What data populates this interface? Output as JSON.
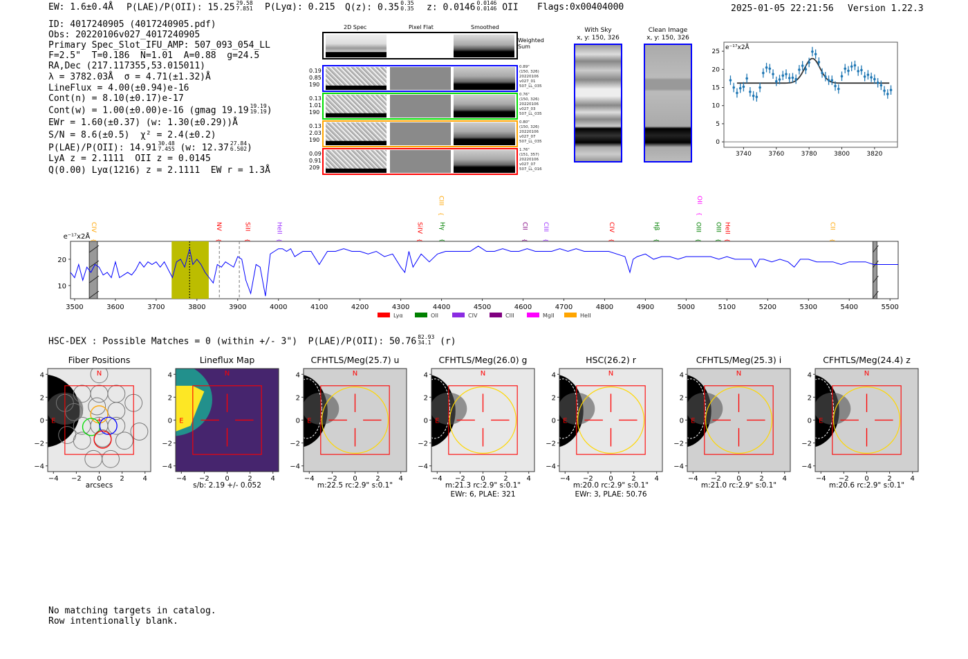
{
  "header": {
    "ew": "EW: 1.6±0.4Å",
    "plae_label": "P(LAE)/P(OII): 15.25",
    "plae_hi": "29.58",
    "plae_lo": "7.851",
    "plya": "P(Lyα): 0.215",
    "qz_label": "Q(z): 0.35",
    "qz_hi": "0.35",
    "qz_lo": "0.35",
    "z_label": "z: 0.0146",
    "z_hi": "0.0146",
    "z_lo": "0.0146",
    "z_line": "OII",
    "flags": "Flags:0x00404000",
    "timestamp": "2025-01-05 22:21:56",
    "version": "Version 1.22.3"
  },
  "info": {
    "id": "ID: 4017240905 (4017240905.pdf)",
    "obs": "Obs: 20220106v027_4017240905",
    "primary": "Primary Spec_Slot_IFU_AMP: 507_093_054_LL",
    "params": "F=2.5\"  T=0.186  N=1.01  A=0.88  g=24.5",
    "radec": "RA,Dec (217.117355,53.015011)",
    "lambda": "λ = 3782.03Å  σ = 4.71(±1.32)Å",
    "lineflux": "LineFlux = 4.00(±0.94)e-16",
    "contn": "Cont(n) = 8.10(±0.17)e-17",
    "contw": "Cont(w) = 1.00(±0.00)e-16 (gmag 19.19",
    "contw_hi": "19.19",
    "contw_lo": "19.19",
    "contw_end": ")",
    "ewr": "EWr = 1.60(±0.37) (w: 1.30(±0.29))Å",
    "sn": "S/N = 8.6(±0.5)  χ² = 2.4(±0.2)",
    "plae": "P(LAE)/P(OII): 14.91",
    "plae_hi": "30.48",
    "plae_lo": "7.455",
    "plae_w": "(w: 12.37",
    "plae_w_hi": "27.84",
    "plae_w_lo": "6.502",
    "plae_w_end": ")",
    "lya_z": "LyA z = 2.1111  OII z = 0.0145",
    "q": "Q(0.00) Lyα(1216) z = 2.1111  EW r = 1.3Å"
  },
  "spec2d": {
    "col_titles": [
      "2D Spec",
      "Pixel Flat",
      "Smoothed"
    ],
    "weighted_label": "Weighted\nSum",
    "rows": [
      {
        "color": "#0000ff",
        "left": "0.19\n0.85\n190",
        "right": "0.89\"\n(150, 326)\n20220106\nv027_01\n507_LL_035"
      },
      {
        "color": "#00dd00",
        "left": "0.13\n1.01\n190",
        "right": "0.76\"\n(150, 326)\n20220106\nv027_03\n507_LL_035"
      },
      {
        "color": "#ffa500",
        "left": "0.13\n2.03\n190",
        "right": "0.80\"\n(150, 326)\n20220106\nv027_07\n507_LL_035"
      },
      {
        "color": "#ff0000",
        "left": "0.09\n0.91\n209",
        "right": "1.76\"\n(151, 357)\n20220106\nv027_07\n507_LL_016"
      }
    ]
  },
  "cutouts": {
    "with_sky": "With Sky\nx, y: 150, 326",
    "clean": "Clean Image\nx, y: 150, 326"
  },
  "chart_data": [
    {
      "type": "scatter",
      "title": "",
      "ylabel": "e⁻¹⁷x2Å",
      "xlim": [
        3728,
        3834
      ],
      "ylim": [
        -1.5,
        27.5
      ],
      "xticks": [
        3740,
        3760,
        3780,
        3800,
        3820
      ],
      "yticks": [
        0,
        5,
        10,
        15,
        20,
        25
      ],
      "x": [
        3732,
        3734,
        3736,
        3738,
        3740,
        3742,
        3744,
        3746,
        3748,
        3750,
        3752,
        3754,
        3756,
        3758,
        3760,
        3762,
        3764,
        3766,
        3768,
        3770,
        3772,
        3774,
        3776,
        3778,
        3780,
        3782,
        3784,
        3786,
        3788,
        3790,
        3792,
        3794,
        3796,
        3798,
        3800,
        3802,
        3804,
        3806,
        3808,
        3810,
        3812,
        3814,
        3816,
        3818,
        3820,
        3822,
        3824,
        3826,
        3828,
        3830
      ],
      "y": [
        17,
        15,
        13.5,
        14.8,
        15.2,
        17.5,
        13.8,
        12.7,
        12.4,
        15,
        19,
        20.5,
        20.2,
        18.7,
        16.7,
        17.2,
        18.3,
        18.7,
        17.6,
        17.7,
        17.3,
        19.9,
        21,
        20,
        21.9,
        24.9,
        24.2,
        22,
        19,
        18,
        17,
        17,
        15.4,
        14.6,
        18.1,
        20.2,
        19.6,
        20.8,
        21.1,
        19.5,
        19.8,
        18,
        18.5,
        17.8,
        17.3,
        16.3,
        15.6,
        14.1,
        13.2,
        14.3
      ],
      "yerr": 1.3,
      "fit": {
        "continuum": 16.2,
        "center": 3782.03,
        "peak": 23.0,
        "sigma": 4.71,
        "range": [
          3736,
          3829
        ]
      },
      "color": "#1f77b4"
    },
    {
      "type": "line",
      "ylabel": "e⁻¹⁷x2Å",
      "xlim": [
        3490,
        5520
      ],
      "ylim": [
        5,
        26.8
      ],
      "xticks": [
        3500,
        3600,
        3700,
        3800,
        3900,
        4000,
        4100,
        4200,
        4300,
        4400,
        4500,
        4600,
        4700,
        4800,
        4900,
        5000,
        5100,
        5200,
        5300,
        5400,
        5500
      ],
      "yticks": [
        10,
        20
      ],
      "color": "#0000ff",
      "x": [
        3490,
        3500,
        3510,
        3520,
        3530,
        3540,
        3550,
        3560,
        3570,
        3580,
        3590,
        3600,
        3610,
        3620,
        3630,
        3640,
        3650,
        3660,
        3670,
        3680,
        3690,
        3700,
        3710,
        3720,
        3730,
        3740,
        3750,
        3760,
        3770,
        3782,
        3790,
        3800,
        3810,
        3820,
        3830,
        3840,
        3850,
        3860,
        3870,
        3880,
        3890,
        3900,
        3910,
        3920,
        3932,
        3945,
        3955,
        3968,
        3980,
        3990,
        4000,
        4010,
        4020,
        4030,
        4040,
        4060,
        4080,
        4100,
        4120,
        4140,
        4160,
        4180,
        4200,
        4220,
        4240,
        4260,
        4280,
        4300,
        4310,
        4320,
        4330,
        4350,
        4370,
        4390,
        4410,
        4430,
        4450,
        4470,
        4490,
        4510,
        4530,
        4550,
        4570,
        4590,
        4610,
        4630,
        4650,
        4670,
        4690,
        4710,
        4730,
        4750,
        4770,
        4790,
        4810,
        4830,
        4850,
        4862,
        4870,
        4880,
        4900,
        4920,
        4940,
        4960,
        4980,
        5000,
        5020,
        5040,
        5060,
        5080,
        5100,
        5120,
        5140,
        5160,
        5170,
        5180,
        5190,
        5210,
        5230,
        5250,
        5265,
        5280,
        5300,
        5320,
        5340,
        5360,
        5380,
        5400,
        5420,
        5440,
        5460,
        5480,
        5500,
        5520
      ],
      "y": [
        15,
        13,
        18,
        12,
        17,
        15,
        18,
        17,
        14,
        15,
        13,
        19,
        13,
        14,
        15,
        14,
        16,
        19,
        17,
        19,
        18,
        19,
        17,
        19,
        16,
        13,
        19,
        20,
        17,
        24,
        18,
        20,
        18,
        15,
        13,
        11,
        18,
        17,
        19,
        18,
        17,
        21,
        20,
        12,
        7,
        18,
        17,
        6,
        22,
        23,
        24,
        24,
        23,
        24,
        21,
        23,
        23,
        18,
        23,
        23,
        24,
        23,
        23,
        22,
        23,
        21,
        22,
        17,
        15,
        23,
        17,
        22,
        19,
        22,
        23,
        23,
        23,
        23,
        25,
        23,
        23,
        24,
        23,
        23,
        24,
        23,
        23,
        23,
        24,
        23,
        24,
        23,
        23,
        23,
        23,
        22,
        21,
        15,
        20,
        21,
        22,
        20,
        21,
        21,
        20,
        21,
        21,
        21,
        21,
        20,
        21,
        20,
        20,
        20,
        17,
        20,
        20,
        19,
        20,
        19,
        17,
        20,
        20,
        19,
        19,
        19,
        18,
        19,
        19,
        19,
        18,
        18,
        18,
        18
      ],
      "masked_regions": [
        [
          3536,
          3556
        ],
        [
          5458,
          5468
        ]
      ],
      "highlight_region": [
        3738,
        3829
      ],
      "line_center": 3782,
      "dashed_lines": [
        3855,
        3904
      ],
      "annotations": [
        {
          "label": "CIV",
          "wave": 3548,
          "color": "#ffa500",
          "high": false
        },
        {
          "label": "NV",
          "wave": 3855,
          "color": "#ff0000",
          "high": false
        },
        {
          "label": "SiII",
          "wave": 3925,
          "color": "#ff0000",
          "high": false
        },
        {
          "label": "HeII",
          "wave": 4003,
          "color": "#9b30ff",
          "high": false
        },
        {
          "label": "SiIV",
          "wave": 4347,
          "color": "#ff0000",
          "high": false
        },
        {
          "label": "CIII",
          "wave": 4400,
          "color": "#ffa500",
          "high": true
        },
        {
          "label": "Hγ",
          "wave": 4402,
          "color": "#008000",
          "high": false
        },
        {
          "label": "CII",
          "wave": 4605,
          "color": "#800080",
          "high": false
        },
        {
          "label": "CIII",
          "wave": 4657,
          "color": "#9b30ff",
          "high": false
        },
        {
          "label": "CIV",
          "wave": 4818,
          "color": "#ff0000",
          "high": false
        },
        {
          "label": "Hβ",
          "wave": 4928,
          "color": "#008000",
          "high": false
        },
        {
          "label": "OII",
          "wave": 5033,
          "color": "#ff00ff",
          "high": true
        },
        {
          "label": "OIII",
          "wave": 5031,
          "color": "#008000",
          "high": false
        },
        {
          "label": "OIII",
          "wave": 5080,
          "color": "#008000",
          "high": false
        },
        {
          "label": "HeII",
          "wave": 5102,
          "color": "#ff0000",
          "high": false
        },
        {
          "label": "CII",
          "wave": 5360,
          "color": "#ffa500",
          "high": false
        }
      ],
      "legend": [
        {
          "label": "Lyα",
          "color": "#ff0000"
        },
        {
          "label": "OII",
          "color": "#008000"
        },
        {
          "label": "CIV",
          "color": "#8a2be2"
        },
        {
          "label": "CIII",
          "color": "#800080"
        },
        {
          "label": "MgII",
          "color": "#ff00ff"
        },
        {
          "label": "HeII",
          "color": "#ffa500"
        }
      ],
      "legend_position": "bottom-center"
    }
  ],
  "hsc": {
    "text": "HSC-DEX : Possible Matches = 0 (within +/- 3\")  P(LAE)/P(OII): 50.76",
    "hi": "82.93",
    "lo": "34.1",
    "end": "(r)"
  },
  "panels": [
    {
      "title": "Fiber Positions",
      "kind": "fiber",
      "line1": "arcsecs",
      "line2": ""
    },
    {
      "title": "Lineflux Map",
      "kind": "lineflux",
      "line1": "s/b: 2.19 +/- 0.052",
      "line2": ""
    },
    {
      "title": "CFHTLS/Meg(25.7) u",
      "kind": "img",
      "line1": "m:22.5 rc:2.9\"  s:0.1\"",
      "line2": ""
    },
    {
      "title": "CFHTLS/Meg(26.0) g",
      "kind": "img",
      "line1": "m:21.3 rc:2.9\"  s:0.1\"",
      "line2": "EWr: 6, PLAE: 321"
    },
    {
      "title": "HSC(26.2) r",
      "kind": "img",
      "line1": "m:20.0 rc:2.9\"  s:0.1\"",
      "line2": "EWr: 3, PLAE: 50.76"
    },
    {
      "title": "CFHTLS/Meg(25.3) i",
      "kind": "img",
      "line1": "m:21.0 rc:2.9\"  s:0.1\"",
      "line2": ""
    },
    {
      "title": "CFHTLS/Meg(24.4) z",
      "kind": "img",
      "line1": "m:20.6 rc:2.9\"  s:0.1\"",
      "line2": ""
    }
  ],
  "panel_ticks": [
    "−4",
    "−2",
    "0",
    "2",
    "4"
  ],
  "compass": {
    "n": "N",
    "e": "E"
  },
  "footer": {
    "line1": "No matching targets in catalog.",
    "line2": "Row intentionally blank."
  }
}
